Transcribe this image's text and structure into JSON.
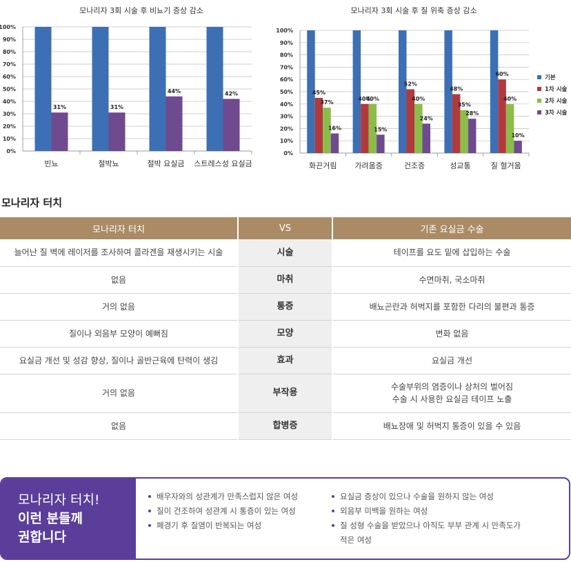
{
  "chart_data": [
    {
      "type": "bar",
      "title": "모나리자 3회 시술 후 비뇨기 증상 감소",
      "categories": [
        "빈뇨",
        "절박뇨",
        "절박 요실금",
        "스트레스성 요실금"
      ],
      "series": [
        {
          "values": [
            100,
            100,
            100,
            100
          ],
          "color": "#3d6fb4"
        },
        {
          "values": [
            31,
            31,
            44,
            42
          ],
          "color": "#6f4a8f"
        }
      ],
      "data_labels": [
        "",
        "",
        "",
        "",
        "31%",
        "31%",
        "44%",
        "42%"
      ],
      "ylim": [
        0,
        100
      ],
      "yticks": [
        "0%",
        "10%",
        "20%",
        "30%",
        "40%",
        "50%",
        "60%",
        "70%",
        "80%",
        "90%",
        "100%"
      ],
      "grid": true
    },
    {
      "type": "bar",
      "title": "모나리자 3회 시술 후 질 위축 증상 감소",
      "categories": [
        "화끈거림",
        "가려움증",
        "건조증",
        "성교통",
        "질 혈거움"
      ],
      "series": [
        {
          "name": "기본",
          "values": [
            100,
            100,
            100,
            100,
            100
          ],
          "color": "#3d6fb4"
        },
        {
          "name": "1차 시술",
          "values": [
            45,
            40,
            52,
            48,
            60
          ],
          "color": "#b13a3d"
        },
        {
          "name": "2차 시술",
          "values": [
            37,
            40,
            40,
            35,
            40
          ],
          "color": "#8cbd4a"
        },
        {
          "name": "3차 시술",
          "values": [
            16,
            15,
            24,
            28,
            10
          ],
          "color": "#6f4a8f"
        }
      ],
      "ylim": [
        0,
        100
      ],
      "yticks": [
        "0%",
        "10%",
        "20%",
        "30%",
        "40%",
        "50%",
        "60%",
        "70%",
        "80%",
        "90%",
        "100%"
      ],
      "legend": "right",
      "grid": true
    }
  ],
  "section": {
    "title": "모나리자 터치"
  },
  "table": {
    "headers": [
      "모나리자 터치",
      "VS",
      "기존 요실금 수술"
    ],
    "rows": [
      {
        "left": "늘어난 질 벽에 레이저를 조사하여 콜라겐을 재생시키는 시술",
        "mid": "시술",
        "right": "테이프를 요도 밑에 삽입하는 수술"
      },
      {
        "left": "없음",
        "mid": "마취",
        "right": "수면마취, 국소마취"
      },
      {
        "left": "거의 없음",
        "mid": "통증",
        "right": "배뇨곤란과 허벅지를 포함한 다리의 불편과 통증"
      },
      {
        "left": "질이나 외음부 모양이 예뻐짐",
        "mid": "모양",
        "right": "변화 없음"
      },
      {
        "left": "요실금 개선 및 성감 향상, 질이나 골반근육에 탄력이 생김",
        "mid": "효과",
        "right": "요실금 개선"
      },
      {
        "left": "거의 없음",
        "mid": "부작용",
        "right": "수술부위의 염증이나 상처의 벌어짐",
        "right2": "수술 시 사용한 요실금 테이프 노출"
      },
      {
        "left": "없음",
        "mid": "합병증",
        "right": "배뇨장애 및 허벅지 통증이 있을 수 있음"
      }
    ]
  },
  "recommend": {
    "line1": "모나리자 터치!",
    "line2": "이런 분들께",
    "line3": "권합니다",
    "col1": [
      "배우자와의 성관계가 만족스럽지 않은 여성",
      "질이 건조하여 성관계 시 통증이 있는 여성",
      "폐경기 후 질염이 반복되는 여성"
    ],
    "col2": [
      "요실금 증상이 있으나 수술을 원하지 않는 여성",
      "외음부 미백을 원하는 여성",
      "질 성형 수술을 받았으나 아직도 부부 관계 시 만족도가",
      "적은 여성"
    ]
  }
}
